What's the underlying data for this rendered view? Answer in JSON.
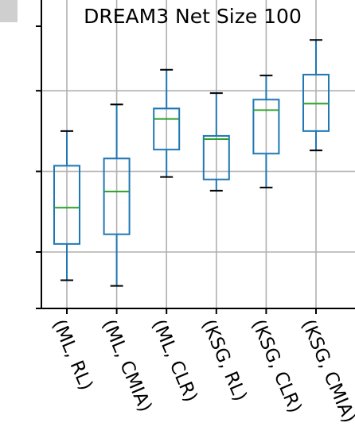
{
  "chart_data": {
    "type": "boxplot",
    "title": "DREAM3 Net Size 100",
    "xlabel": "",
    "ylabel": "",
    "categories": [
      "(ML, RL)",
      "(ML, CMIA)",
      "(ML, CLR)",
      "(KSG, RL)",
      "(KSG, CLR)",
      "(KSG, CMIA)"
    ],
    "boxes": [
      {
        "whislo": 0.465,
        "q1": 0.51,
        "med": 0.555,
        "q3": 0.607,
        "whishi": 0.65
      },
      {
        "whislo": 0.458,
        "q1": 0.522,
        "med": 0.575,
        "q3": 0.616,
        "whishi": 0.683
      },
      {
        "whislo": 0.593,
        "q1": 0.627,
        "med": 0.665,
        "q3": 0.678,
        "whishi": 0.726
      },
      {
        "whislo": 0.576,
        "q1": 0.59,
        "med": 0.64,
        "q3": 0.644,
        "whishi": 0.697
      },
      {
        "whislo": 0.58,
        "q1": 0.622,
        "med": 0.676,
        "q3": 0.689,
        "whishi": 0.719
      },
      {
        "whislo": 0.626,
        "q1": 0.65,
        "med": 0.684,
        "q3": 0.72,
        "whishi": 0.763
      }
    ],
    "ylim": [
      0.43,
      0.78
    ],
    "yticks": [
      0.5,
      0.6,
      0.7
    ],
    "grid": true,
    "colors": {
      "box": "#1f77b4",
      "median": "#2ca02c",
      "whisker_cap": "#000000",
      "grid": "#b0b0b0",
      "axis": "#000000"
    }
  },
  "corner_mark": {
    "color": "#cfcfcf"
  }
}
